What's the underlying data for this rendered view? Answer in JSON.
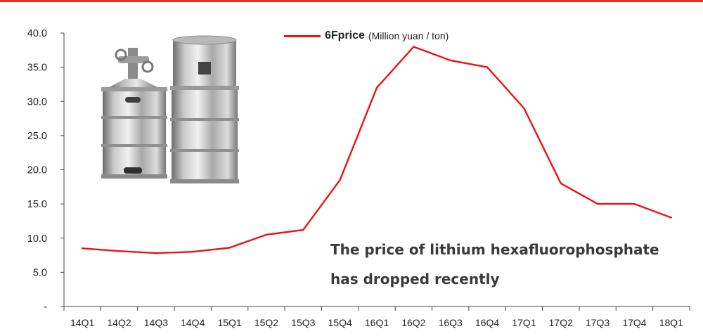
{
  "chart_data": {
    "type": "line",
    "categories": [
      "14Q1",
      "14Q2",
      "14Q3",
      "14Q4",
      "15Q1",
      "15Q2",
      "15Q3",
      "15Q4",
      "16Q1",
      "16Q2",
      "16Q3",
      "16Q4",
      "17Q1",
      "17Q2",
      "17Q3",
      "17Q4",
      "18Q1"
    ],
    "series": [
      {
        "name": "6Fprice",
        "unit": "(Million yuan / ton)",
        "values": [
          8.5,
          8.1,
          7.8,
          8.0,
          8.6,
          10.5,
          11.2,
          18.5,
          32.0,
          38.0,
          36.0,
          35.0,
          29.0,
          18.0,
          15.0,
          15.0,
          13.0
        ],
        "color": "#ee1111"
      }
    ],
    "y_ticks": [
      "-",
      "5.0",
      "10.0",
      "15.0",
      "20.0",
      "25.0",
      "30.0",
      "35.0",
      "40.0"
    ],
    "ylim": [
      0,
      40
    ],
    "grid": false,
    "legend_position": "top",
    "title": "",
    "xlabel": "",
    "ylabel": ""
  },
  "annotation": {
    "line1": "The price of lithium hexafluorophosphate",
    "line2": "has dropped recently"
  },
  "image": {
    "description_icon": "stainless-steel-drums-photo"
  },
  "colors": {
    "accent_rule": "#e8311d",
    "line": "#ee1111",
    "axis": "#444444"
  }
}
